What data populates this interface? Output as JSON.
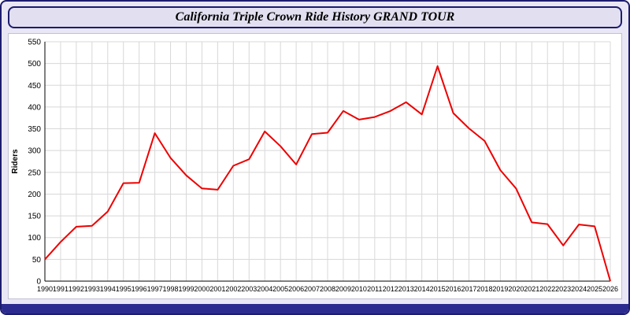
{
  "window": {
    "title": "California Triple Crown Ride History GRAND TOUR"
  },
  "chart_data": {
    "type": "line",
    "title": "California Triple Crown Ride History GRAND TOUR",
    "xlabel": "",
    "ylabel": "Riders",
    "ylim": [
      0,
      550
    ],
    "ytick_step": 50,
    "grid": true,
    "legend_position": "none",
    "line_color": "#ee0000",
    "categories": [
      "1990",
      "1991",
      "1992",
      "1993",
      "1994",
      "1995",
      "1996",
      "1997",
      "1998",
      "1999",
      "2000",
      "2001",
      "2002",
      "2003",
      "2004",
      "2005",
      "2006",
      "2007",
      "2008",
      "2009",
      "2010",
      "2011",
      "2012",
      "2013",
      "2014",
      "2015",
      "2016",
      "2017",
      "2018",
      "2019",
      "2020",
      "2021",
      "2022",
      "2023",
      "2024",
      "2025",
      "2026"
    ],
    "values": [
      50,
      90,
      125,
      127,
      160,
      225,
      226,
      340,
      283,
      243,
      213,
      210,
      265,
      280,
      344,
      310,
      268,
      338,
      341,
      391,
      371,
      377,
      391,
      411,
      383,
      494,
      386,
      351,
      322,
      255,
      213,
      135,
      131,
      82,
      130,
      126,
      0
    ]
  },
  "colors": {
    "frame_border": "#1c1c6e",
    "page_background": "#e9e7f5",
    "title_bar_background": "#e2e0f0",
    "plot_background": "#ffffff",
    "grid": "#d8d8d8",
    "axis": "#000000",
    "line": "#ee0000",
    "bottom_bar": "#2b2b8f"
  }
}
